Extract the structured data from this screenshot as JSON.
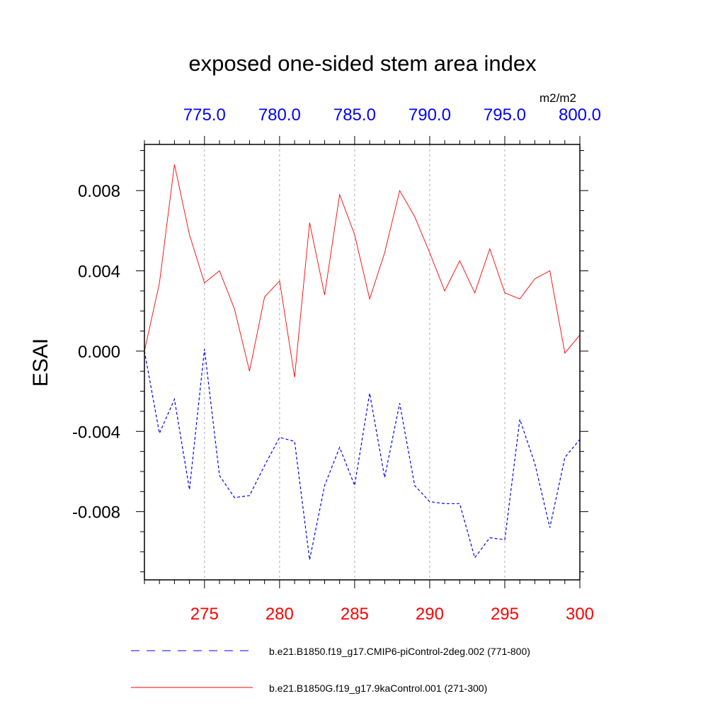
{
  "chart_data": {
    "type": "line",
    "title": "exposed one-sided stem area index",
    "units": "m2/m2",
    "ylabel": "ESAI",
    "ylim": [
      -0.0114,
      0.0103
    ],
    "yticks": [
      {
        "value": 0.008,
        "label": "0.008"
      },
      {
        "value": 0.004,
        "label": "0.004"
      },
      {
        "value": 0.0,
        "label": "0.000"
      },
      {
        "value": -0.004,
        "label": "-0.004"
      },
      {
        "value": -0.008,
        "label": "-0.008"
      }
    ],
    "bottom_axis": {
      "range": [
        271,
        300
      ],
      "ticks": [
        {
          "value": 275,
          "label": "275"
        },
        {
          "value": 280,
          "label": "280"
        },
        {
          "value": 285,
          "label": "285"
        },
        {
          "value": 290,
          "label": "290"
        },
        {
          "value": 295,
          "label": "295"
        },
        {
          "value": 300,
          "label": "300"
        }
      ]
    },
    "top_axis": {
      "range": [
        771,
        800
      ],
      "ticks": [
        {
          "value": 775,
          "label": "775.0"
        },
        {
          "value": 780,
          "label": "780.0"
        },
        {
          "value": 785,
          "label": "785.0"
        },
        {
          "value": 790,
          "label": "790.0"
        },
        {
          "value": 795,
          "label": "795.0"
        },
        {
          "value": 800,
          "label": "800.0"
        }
      ]
    },
    "series": [
      {
        "name": "b.e21.B1850.f19_g17.CMIP6-piControl-2deg.002 (771-800)",
        "axis": "top",
        "x": [
          771,
          772,
          773,
          774,
          775,
          776,
          777,
          778,
          779,
          780,
          781,
          782,
          783,
          784,
          785,
          786,
          787,
          788,
          789,
          790,
          791,
          792,
          793,
          794,
          795,
          796,
          797,
          798,
          799,
          800
        ],
        "values": [
          0.0,
          -0.0041,
          -0.0024,
          -0.0069,
          0.0001,
          -0.0062,
          -0.0073,
          -0.0072,
          -0.0057,
          -0.0043,
          -0.0045,
          -0.0104,
          -0.0067,
          -0.0048,
          -0.0067,
          -0.0021,
          -0.0063,
          -0.0026,
          -0.0067,
          -0.0075,
          -0.0076,
          -0.0076,
          -0.0103,
          -0.0093,
          -0.0094,
          -0.0034,
          -0.0056,
          -0.0088,
          -0.0053,
          -0.0044
        ],
        "color": "#0000ff",
        "dash": "dashed"
      },
      {
        "name": "b.e21.B1850G.f19_g17.9kaControl.001 (271-300)",
        "axis": "bottom",
        "x": [
          271,
          272,
          273,
          274,
          275,
          276,
          277,
          278,
          279,
          280,
          281,
          282,
          283,
          284,
          285,
          286,
          287,
          288,
          289,
          290,
          291,
          292,
          293,
          294,
          295,
          296,
          297,
          298,
          299,
          300
        ],
        "values": [
          0.0,
          0.0034,
          0.0093,
          0.0058,
          0.0034,
          0.004,
          0.0021,
          -0.001,
          0.0027,
          0.0035,
          -0.0013,
          0.0064,
          0.0028,
          0.0078,
          0.0058,
          0.0026,
          0.0049,
          0.008,
          0.0067,
          0.0049,
          0.003,
          0.0045,
          0.0029,
          0.0051,
          0.0029,
          0.0026,
          0.0036,
          0.004,
          -0.0001,
          0.0008
        ],
        "color": "#ff0000",
        "dash": "solid"
      }
    ],
    "grid": "vertical dotted at top-axis ticks"
  }
}
